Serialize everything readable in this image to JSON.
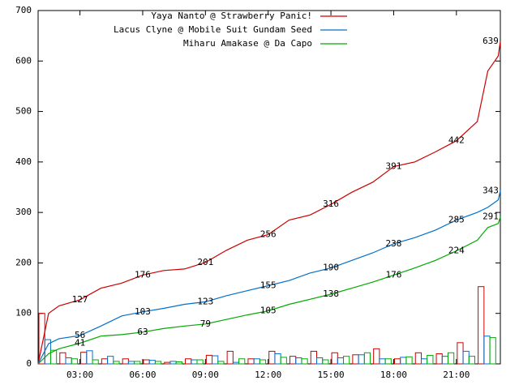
{
  "chart_data": {
    "type": "line",
    "x": [
      1,
      1.5,
      2,
      3,
      4,
      5,
      6,
      7,
      8,
      9,
      10,
      11,
      12,
      13,
      14,
      15,
      16,
      17,
      18,
      19,
      20,
      21,
      22,
      22.5,
      23,
      23.1
    ],
    "xlim": [
      1,
      23.1
    ],
    "xticks": [
      {
        "value": 3,
        "label": "03:00"
      },
      {
        "value": 6,
        "label": "06:00"
      },
      {
        "value": 9,
        "label": "09:00"
      },
      {
        "value": 12,
        "label": "12:00"
      },
      {
        "value": 15,
        "label": "15:00"
      },
      {
        "value": 18,
        "label": "18:00"
      },
      {
        "value": 21,
        "label": "21:00"
      }
    ],
    "ylim": [
      0,
      700
    ],
    "yticks": [
      0,
      100,
      200,
      300,
      400,
      500,
      600,
      700
    ],
    "bar_x": [
      1,
      2,
      3,
      4,
      5,
      6,
      7,
      8,
      9,
      10,
      11,
      12,
      13,
      14,
      15,
      16,
      17,
      18,
      19,
      20,
      21,
      22
    ],
    "series": [
      {
        "name": "Yaya Nanto @ Strawberry Panic!",
        "color": "#cc0000",
        "values": [
          0,
          100,
          115,
          127,
          150,
          160,
          176,
          185,
          188,
          201,
          225,
          245,
          256,
          285,
          295,
          316,
          340,
          360,
          391,
          400,
          420,
          442,
          480,
          580,
          610,
          639
        ],
        "hourly": [
          100,
          22,
          23,
          10,
          10,
          8,
          3,
          10,
          17,
          25,
          10,
          25,
          15,
          25,
          22,
          18,
          30,
          10,
          22,
          20,
          42,
          153
        ]
      },
      {
        "name": "Lacus Clyne @ Mobile Suit Gundam Seed",
        "color": "#0070cc",
        "values": [
          0,
          40,
          50,
          56,
          75,
          95,
          103,
          110,
          118,
          123,
          135,
          145,
          155,
          165,
          180,
          190,
          205,
          220,
          238,
          250,
          265,
          285,
          300,
          310,
          325,
          343
        ],
        "hourly": [
          48,
          12,
          26,
          15,
          5,
          7,
          5,
          8,
          16,
          3,
          10,
          20,
          12,
          12,
          12,
          18,
          10,
          13,
          10,
          15,
          25,
          55
        ]
      },
      {
        "name": "Miharu Amakase @ Da Capo",
        "color": "#00aa00",
        "values": [
          0,
          20,
          30,
          41,
          55,
          58,
          63,
          70,
          75,
          79,
          88,
          97,
          105,
          118,
          128,
          138,
          150,
          162,
          176,
          190,
          205,
          224,
          245,
          270,
          278,
          291
        ],
        "hourly": [
          27,
          10,
          8,
          5,
          5,
          5,
          4,
          8,
          5,
          10,
          8,
          13,
          10,
          8,
          15,
          22,
          10,
          14,
          17,
          22,
          15,
          52
        ]
      }
    ]
  }
}
